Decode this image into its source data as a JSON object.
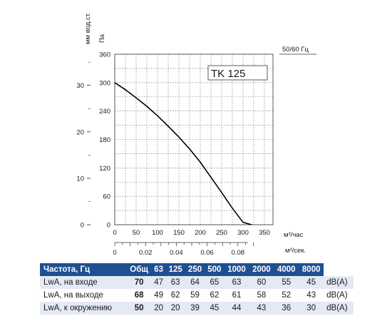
{
  "chart_data": {
    "type": "line",
    "model_label": "TK 125",
    "frequency_label": "50/60 Гц",
    "y_left_units": "мм вод.ст.",
    "y_right_units": "Па",
    "x_units": "м³/час",
    "x2_units": "м³/сек.",
    "y_pa_ticks": [
      0,
      60,
      120,
      180,
      240,
      300,
      360
    ],
    "y_mm_ticks": [
      0,
      10,
      20,
      30
    ],
    "x_ticks": [
      0,
      50,
      100,
      150,
      200,
      250,
      300,
      350
    ],
    "x2_ticks": [
      "0",
      "0.02",
      "0.04",
      "0.06",
      "0.08"
    ],
    "x2_values": [
      0,
      0.02,
      0.04,
      0.06,
      0.08
    ],
    "xlim": [
      0,
      370
    ],
    "ylim": [
      0,
      360
    ],
    "grid": true,
    "series": [
      {
        "x": [
          0,
          25,
          50,
          75,
          100,
          125,
          150,
          175,
          200,
          225,
          250,
          275,
          300,
          320
        ],
        "y": [
          300,
          285,
          268,
          250,
          230,
          208,
          185,
          160,
          132,
          100,
          68,
          35,
          5,
          0
        ]
      }
    ]
  },
  "noise_table": {
    "header": [
      "Частота, Гц",
      "Общ",
      "63",
      "125",
      "250",
      "500",
      "1000",
      "2000",
      "4000",
      "8000"
    ],
    "rows": [
      {
        "label": "LwA, на входе",
        "total": "70",
        "values": [
          "47",
          "63",
          "64",
          "65",
          "63",
          "60",
          "55",
          "45"
        ],
        "unit": "dB(A)"
      },
      {
        "label": "LwA, на выходе",
        "total": "68",
        "values": [
          "49",
          "62",
          "59",
          "62",
          "61",
          "58",
          "52",
          "43"
        ],
        "unit": "dB(A)"
      },
      {
        "label": "LwA, к окружению",
        "total": "50",
        "values": [
          "20",
          "20",
          "39",
          "45",
          "44",
          "43",
          "36",
          "30"
        ],
        "unit": "dB(A)"
      }
    ]
  }
}
